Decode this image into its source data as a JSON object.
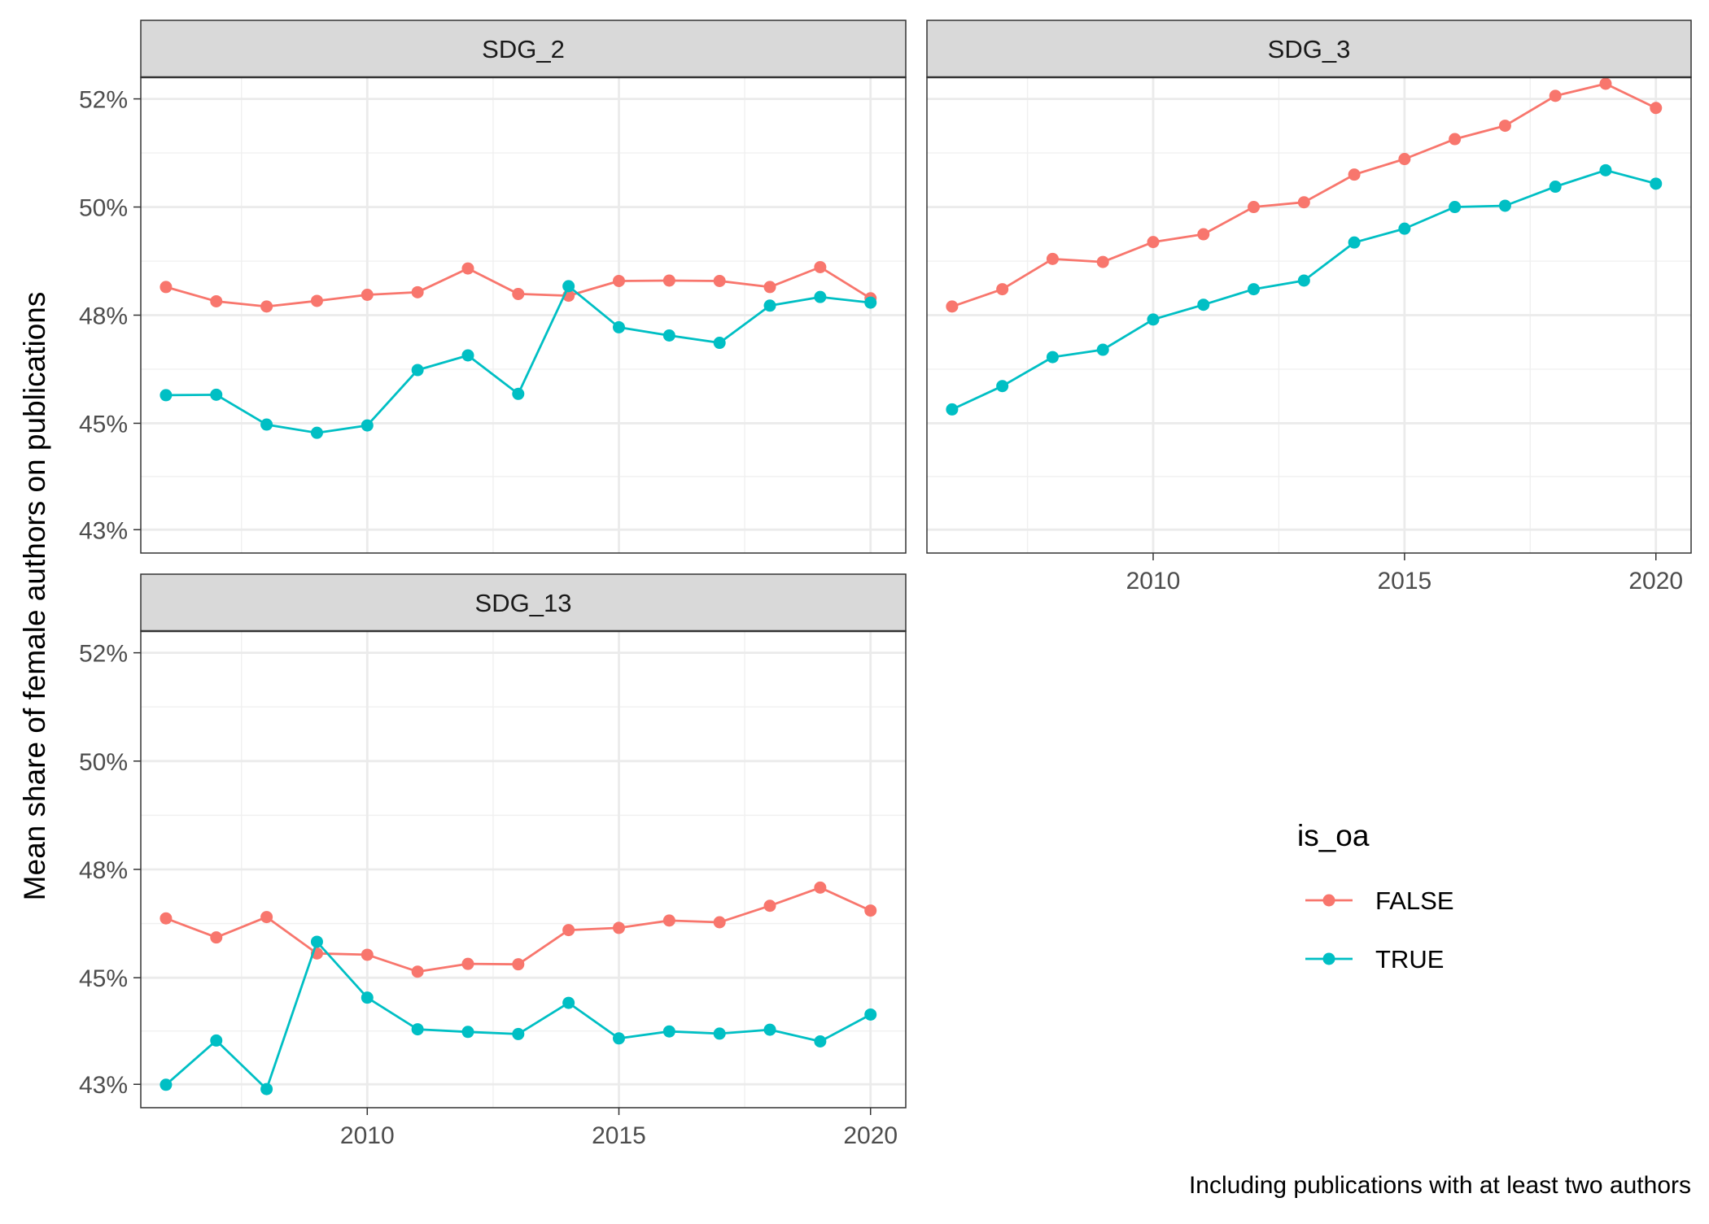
{
  "chart_data": {
    "type": "line",
    "ylabel": "Mean share of female authors on publications",
    "caption": "Including publications with at least two authors",
    "legend": {
      "title": "is_oa",
      "placement": "right",
      "entries": [
        {
          "label": "FALSE",
          "color": "#F8766D"
        },
        {
          "label": "TRUE",
          "color": "#00BFC4"
        }
      ]
    },
    "x_ticks": [
      "2010",
      "2015",
      "2020"
    ],
    "x_tick_values": [
      2010,
      2015,
      2020
    ],
    "y_ticks": [
      "43%",
      "45%",
      "48%",
      "50%",
      "52%"
    ],
    "y_tick_values": [
      0.4254,
      0.45,
      0.475,
      0.5,
      0.525
    ],
    "xlim": [
      2005.5,
      2020.7
    ],
    "ylim": [
      0.42,
      0.53
    ],
    "grid": true,
    "facets": [
      {
        "strip": "SDG_2",
        "x": [
          2006,
          2007,
          2008,
          2009,
          2010,
          2011,
          2012,
          2013,
          2014,
          2015,
          2016,
          2017,
          2018,
          2019,
          2020
        ],
        "series": [
          {
            "name": "FALSE",
            "color": "#F8766D",
            "values": [
              0.4815,
              0.4782,
              0.477,
              0.4783,
              0.4797,
              0.4803,
              0.4858,
              0.4799,
              0.4795,
              0.4829,
              0.483,
              0.4829,
              0.4815,
              0.4861,
              0.4789
            ]
          },
          {
            "name": "TRUE",
            "color": "#00BFC4",
            "values": [
              0.4565,
              0.4566,
              0.4497,
              0.4478,
              0.4495,
              0.4623,
              0.4657,
              0.4568,
              0.4817,
              0.4722,
              0.4703,
              0.4686,
              0.4772,
              0.4792,
              0.4779
            ]
          }
        ]
      },
      {
        "strip": "SDG_3",
        "x": [
          2006,
          2007,
          2008,
          2009,
          2010,
          2011,
          2012,
          2013,
          2014,
          2015,
          2016,
          2017,
          2018,
          2019,
          2020
        ],
        "series": [
          {
            "name": "FALSE",
            "color": "#F8766D",
            "values": [
              0.477,
              0.481,
              0.488,
              0.4873,
              0.4919,
              0.4937,
              0.5,
              0.5011,
              0.5075,
              0.5111,
              0.5157,
              0.5188,
              0.5257,
              0.5285,
              0.5229
            ]
          },
          {
            "name": "TRUE",
            "color": "#00BFC4",
            "values": [
              0.4532,
              0.4586,
              0.4653,
              0.467,
              0.474,
              0.4774,
              0.481,
              0.483,
              0.4918,
              0.495,
              0.5,
              0.5003,
              0.5047,
              0.5085,
              0.5054
            ]
          }
        ]
      },
      {
        "strip": "SDG_13",
        "x": [
          2006,
          2007,
          2008,
          2009,
          2010,
          2011,
          2012,
          2013,
          2014,
          2015,
          2016,
          2017,
          2018,
          2019,
          2020
        ],
        "series": [
          {
            "name": "FALSE",
            "color": "#F8766D",
            "values": [
              0.4637,
              0.4593,
              0.464,
              0.4556,
              0.4553,
              0.4514,
              0.4532,
              0.4531,
              0.461,
              0.4615,
              0.4632,
              0.4628,
              0.4666,
              0.4708,
              0.4655
            ]
          },
          {
            "name": "TRUE",
            "color": "#00BFC4",
            "values": [
              0.4253,
              0.4355,
              0.4243,
              0.4583,
              0.4454,
              0.4381,
              0.4375,
              0.437,
              0.4442,
              0.436,
              0.4376,
              0.4371,
              0.438,
              0.4353,
              0.4415
            ]
          }
        ]
      }
    ]
  }
}
